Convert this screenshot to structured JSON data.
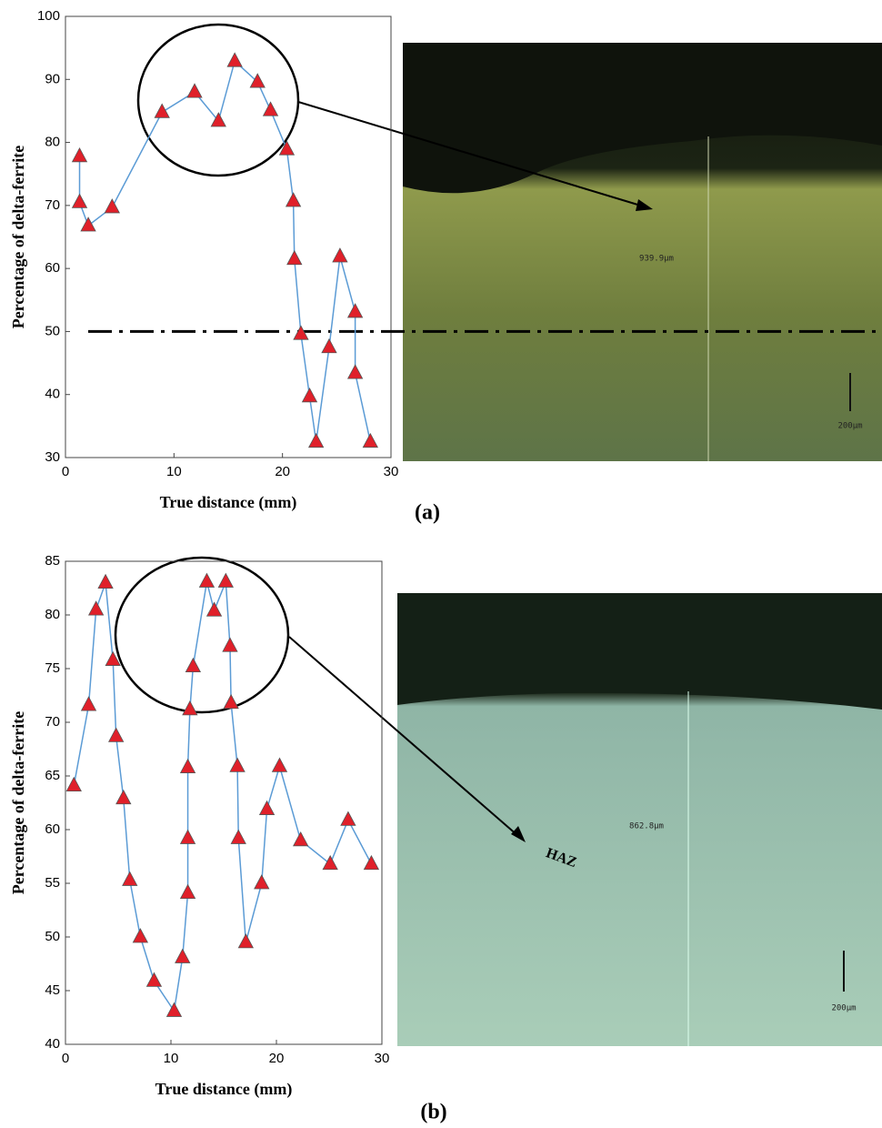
{
  "chart_data": [
    {
      "type": "line",
      "panel_label": "(a)",
      "xlabel": "True distance (mm)",
      "ylabel": "Percentage of delta-ferrite",
      "x": [
        1.3,
        1.3,
        2.1,
        4.3,
        8.9,
        11.9,
        14.1,
        15.6,
        17.7,
        18.9,
        20.4,
        21.0,
        21.1,
        21.7,
        22.5,
        23.1,
        24.3,
        25.3,
        26.7,
        26.7,
        28.1
      ],
      "values": [
        77.8,
        70.5,
        66.8,
        69.7,
        84.8,
        88,
        83.4,
        92.9,
        89.6,
        85.1,
        78.9,
        70.7,
        61.5,
        49.6,
        39.7,
        32.5,
        47.5,
        61.9,
        53.1,
        43.4,
        32.5
      ],
      "color": "#5b9bd5",
      "marker_color": "#e0202a",
      "xlim": [
        0,
        30
      ],
      "ylim": [
        30,
        100
      ],
      "xticks": [
        0,
        10,
        20,
        30
      ],
      "yticks": [
        30,
        40,
        50,
        60,
        70,
        80,
        90,
        100
      ],
      "reference_line": 50,
      "measure_label": "939.9µm",
      "scale_label": "200µm"
    },
    {
      "type": "line",
      "panel_label": "(b)",
      "xlabel": "True distance (mm)",
      "ylabel": "Percentage of delta-ferrite",
      "x": [
        0.8,
        2.2,
        2.9,
        3.8,
        4.5,
        4.8,
        5.5,
        6.1,
        7.1,
        8.4,
        10.3,
        11.1,
        11.6,
        11.6,
        11.6,
        11.8,
        12.1,
        13.4,
        14.1,
        15.2,
        15.6,
        15.7,
        16.3,
        16.4,
        17.1,
        18.6,
        19.1,
        20.3,
        22.3,
        25.1,
        26.8,
        29.0
      ],
      "values": [
        64.1,
        71.6,
        80.5,
        83.0,
        75.8,
        68.7,
        62.9,
        55.3,
        50.0,
        45.9,
        43.1,
        48.1,
        54.1,
        59.2,
        65.8,
        71.2,
        75.2,
        83.1,
        80.4,
        83.1,
        77.1,
        71.8,
        65.9,
        59.2,
        49.5,
        55.0,
        61.9,
        65.9,
        59.0,
        56.8,
        60.9,
        56.8
      ],
      "color": "#5b9bd5",
      "marker_color": "#e0202a",
      "xlim": [
        0,
        30
      ],
      "ylim": [
        40,
        85
      ],
      "xticks": [
        0,
        10,
        20,
        30
      ],
      "yticks": [
        40,
        45,
        50,
        55,
        60,
        65,
        70,
        75,
        80,
        85
      ],
      "annotation": "HAZ",
      "measure_label": "862.8µm",
      "scale_label": "200µm"
    }
  ]
}
